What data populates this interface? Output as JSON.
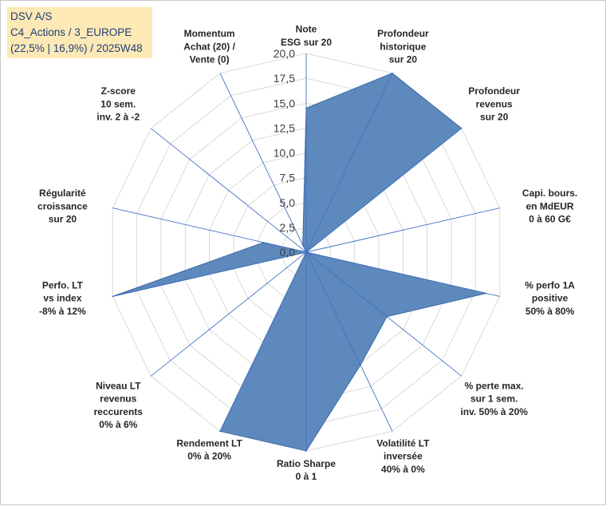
{
  "header": {
    "line1": "DSV A/S",
    "line2": "C4_Actions / 3_EUROPE",
    "line3": "(22,5% | 16,9%) / 2025W48"
  },
  "colors": {
    "area_fill": "#4f7fb6",
    "area_stroke": "#3b6aa3",
    "grid": "#d9d9d9",
    "axis": "#4472c4",
    "header_bg": "#fde9b5",
    "header_text": "#1f3d7a"
  },
  "chart_data": {
    "type": "radar",
    "rmin": 0,
    "rmax": 20,
    "tick_step": 2.5,
    "tick_labels": [
      "0,0",
      "2,5",
      "5,0",
      "7,5",
      "10,0",
      "12,5",
      "15,0",
      "17,5",
      "20,0"
    ],
    "axes": [
      {
        "name": "esg",
        "label": [
          "Note",
          "ESG sur 20"
        ],
        "value": 14.5
      },
      {
        "name": "profondeur-historique",
        "label": [
          "Profondeur",
          "historique",
          "sur 20"
        ],
        "value": 20
      },
      {
        "name": "profondeur-revenus",
        "label": [
          "Profondeur",
          "revenus",
          "sur 20"
        ],
        "value": 20
      },
      {
        "name": "capi-bours",
        "label": [
          "Capi. bours.",
          "en MdEUR",
          "0 à 60 G€"
        ],
        "value": 0
      },
      {
        "name": "perfo-1a",
        "label": [
          "% perfo 1A",
          "positive",
          "50% à 80%"
        ],
        "value": 18.6
      },
      {
        "name": "perte-max",
        "label": [
          "% perte max.",
          "sur 1 sem.",
          "inv. 50% à 20%"
        ],
        "value": 10.4
      },
      {
        "name": "volatilite-lt",
        "label": [
          "Volatilité LT",
          "inversée",
          "40% à 0%"
        ],
        "value": 12.6
      },
      {
        "name": "ratio-sharpe",
        "label": [
          "Ratio Sharpe",
          "0 à 1"
        ],
        "value": 20
      },
      {
        "name": "rendement-lt",
        "label": [
          "Rendement LT",
          "0% à 20%"
        ],
        "value": 20
      },
      {
        "name": "niveau-lt-revenus",
        "label": [
          "Niveau LT",
          "revenus",
          "reccurents",
          "0% à 6%"
        ],
        "value": 0
      },
      {
        "name": "perfo-lt-index",
        "label": [
          "Perfo. LT",
          "vs index",
          "-8% à 12%"
        ],
        "value": 20
      },
      {
        "name": "regularite-croissance",
        "label": [
          "Régularité",
          "croissance",
          "sur 20"
        ],
        "value": 4.4
      },
      {
        "name": "zscore",
        "label": [
          "Z-score",
          "10 sem.",
          "inv. 2 à -2"
        ],
        "value": 0
      },
      {
        "name": "momentum",
        "label": [
          "Momentum",
          "Achat (20) /",
          "Vente (0)"
        ],
        "value": 0.8
      }
    ]
  }
}
